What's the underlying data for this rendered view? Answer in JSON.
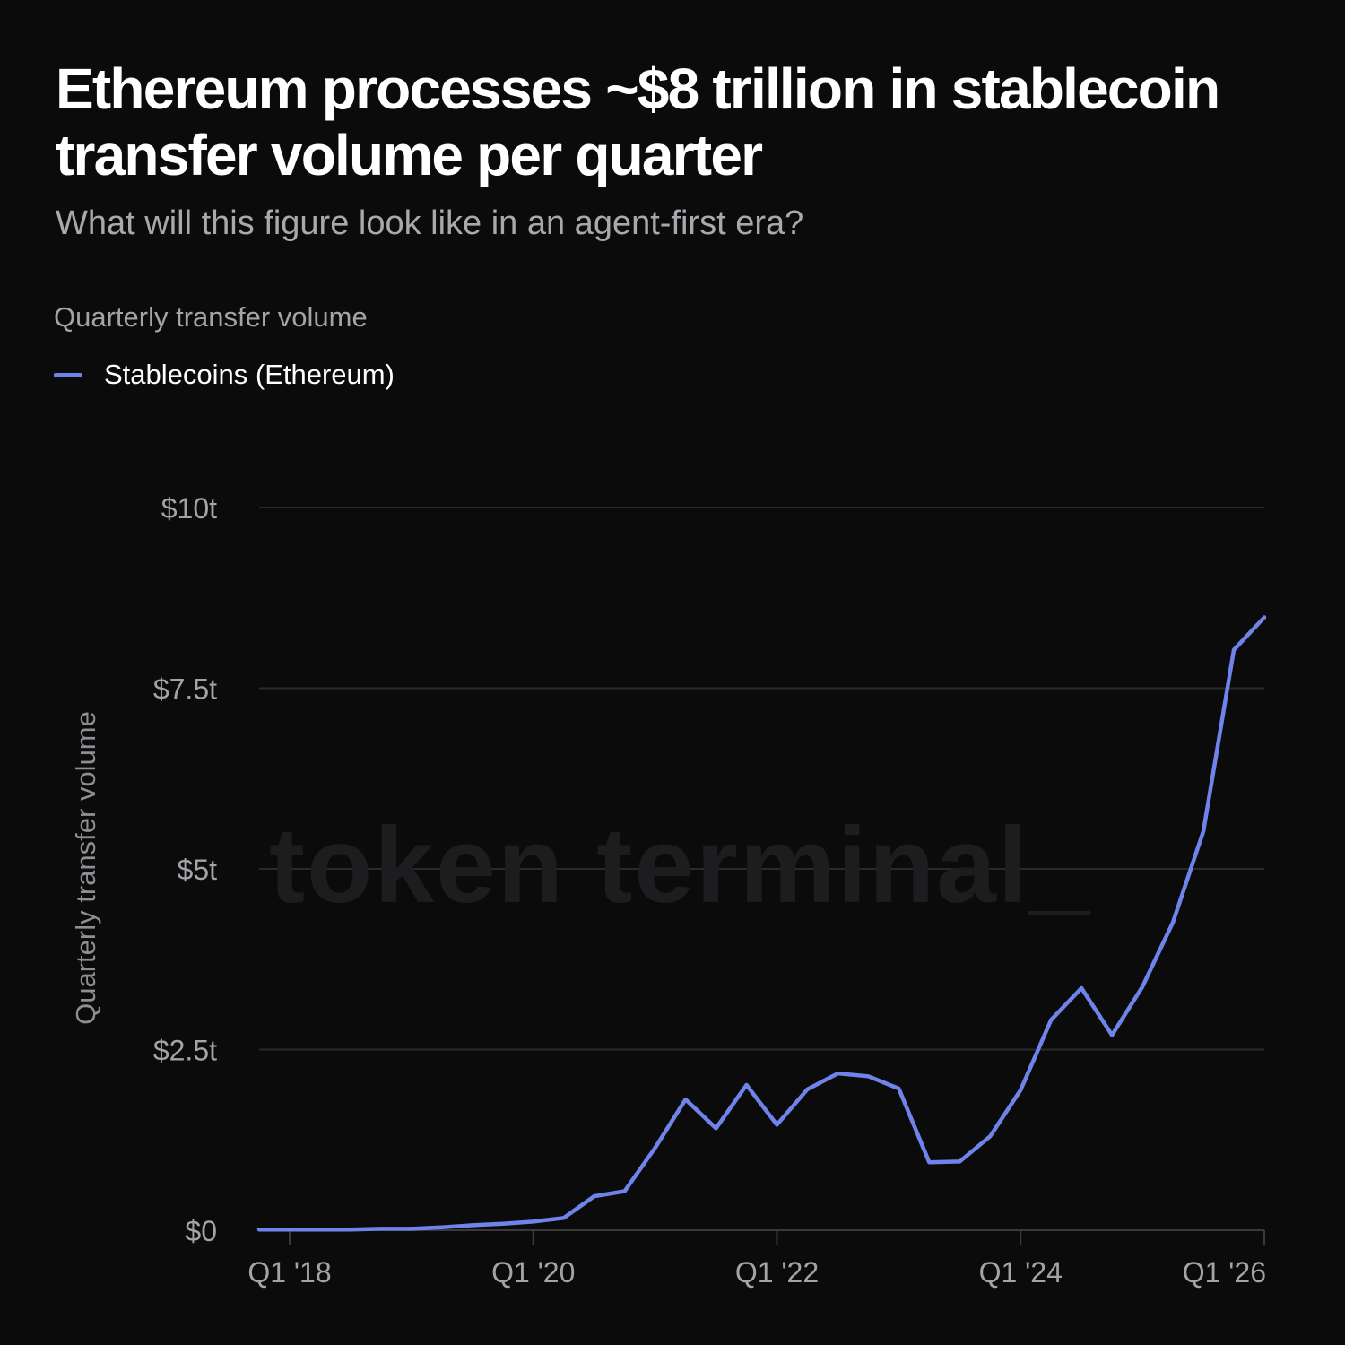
{
  "title": "Ethereum processes ~$8 trillion in stablecoin transfer volume per quarter",
  "subtitle": "What will this figure look like in an agent-first era?",
  "chart_label": "Quarterly transfer volume",
  "watermark": "token terminal_",
  "colors": {
    "background": "#0b0b0c",
    "series": "#6f84ea",
    "grid": "#2a2a2d"
  },
  "chart_data": {
    "type": "line",
    "ylabel": "Quarterly transfer volume",
    "xlabel": "",
    "ylim": [
      0,
      10
    ],
    "y_unit": "trillion USD",
    "y_ticks": [
      {
        "value": 0,
        "label": "$0"
      },
      {
        "value": 2.5,
        "label": "$2.5t"
      },
      {
        "value": 5,
        "label": "$5t"
      },
      {
        "value": 7.5,
        "label": "$7.5t"
      },
      {
        "value": 10,
        "label": "$10t"
      }
    ],
    "x_ticks": [
      {
        "quarter": "2018-Q1",
        "label": "Q1 '18"
      },
      {
        "quarter": "2020-Q1",
        "label": "Q1 '20"
      },
      {
        "quarter": "2022-Q1",
        "label": "Q1 '22"
      },
      {
        "quarter": "2024-Q1",
        "label": "Q1 '24"
      },
      {
        "quarter": "2026-Q1",
        "label": "Q1 '26"
      }
    ],
    "grid": true,
    "legend_position": "top-left",
    "x": [
      "2017-Q4",
      "2018-Q1",
      "2018-Q2",
      "2018-Q3",
      "2018-Q4",
      "2019-Q1",
      "2019-Q2",
      "2019-Q3",
      "2019-Q4",
      "2020-Q1",
      "2020-Q2",
      "2020-Q3",
      "2020-Q4",
      "2021-Q1",
      "2021-Q2",
      "2021-Q3",
      "2021-Q4",
      "2022-Q1",
      "2022-Q2",
      "2022-Q3",
      "2022-Q4",
      "2023-Q1",
      "2023-Q2",
      "2023-Q3",
      "2023-Q4",
      "2024-Q1",
      "2024-Q2",
      "2024-Q3",
      "2024-Q4",
      "2025-Q1",
      "2025-Q2",
      "2025-Q3",
      "2025-Q4",
      "2026-Q1"
    ],
    "series": [
      {
        "name": "Stablecoins (Ethereum)",
        "values": [
          0.01,
          0.01,
          0.01,
          0.01,
          0.02,
          0.02,
          0.04,
          0.07,
          0.09,
          0.12,
          0.17,
          0.47,
          0.54,
          1.14,
          1.81,
          1.41,
          2.01,
          1.46,
          1.95,
          2.17,
          2.13,
          1.96,
          0.94,
          0.95,
          1.3,
          1.94,
          2.91,
          3.35,
          2.7,
          3.37,
          4.26,
          5.52,
          8.03,
          8.48
        ]
      }
    ]
  }
}
